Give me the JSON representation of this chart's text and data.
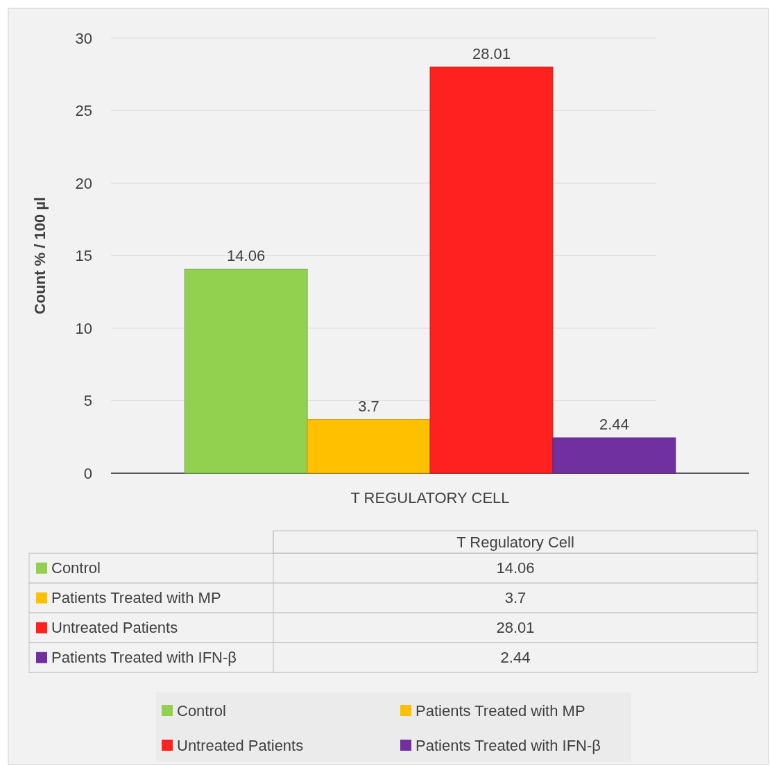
{
  "chart_data": {
    "type": "bar",
    "ylabel": "Count % / 100 µl",
    "categories": [
      "T REGULATORY CELL"
    ],
    "series": [
      {
        "name": "Control",
        "color": "#92d050",
        "values": [
          14.06
        ]
      },
      {
        "name": "Patients Treated with MP",
        "color": "#ffc000",
        "values": [
          3.7
        ]
      },
      {
        "name": "Untreated Patients",
        "color": "#ff2020",
        "values": [
          28.01
        ]
      },
      {
        "name": "Patients Treated with IFN-β",
        "color": "#7030a0",
        "values": [
          2.44
        ]
      }
    ],
    "ylim": [
      0,
      30
    ],
    "yticks": [
      0,
      5,
      10,
      15,
      20,
      25,
      30
    ],
    "grid": "y",
    "legend": "bottom",
    "data_labels": true,
    "annotations": [
      "T Regulatory Cell",
      "14.06",
      "3.7",
      "28.01",
      "2.44"
    ]
  }
}
